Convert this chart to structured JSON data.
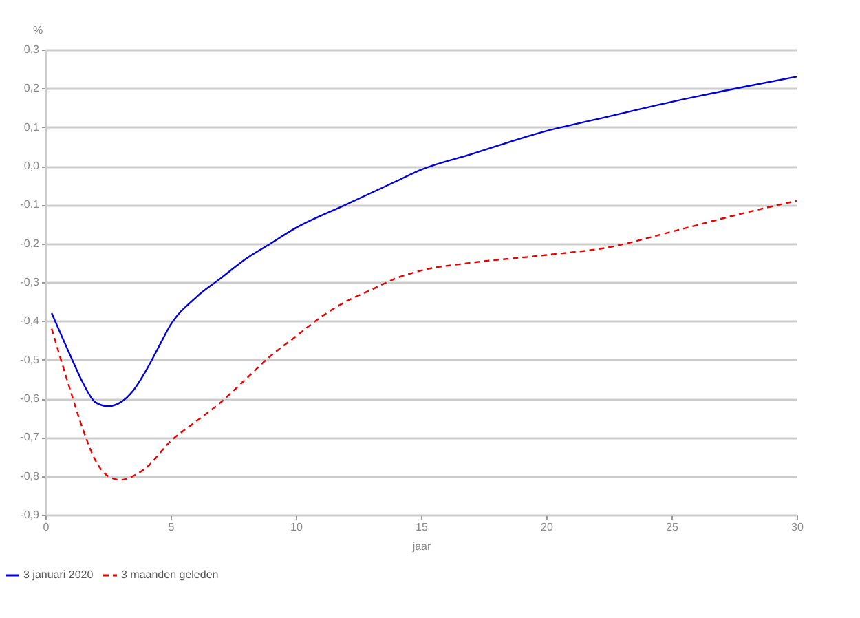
{
  "chart_data": {
    "type": "line",
    "xlabel": "jaar",
    "ylabel": "%",
    "xlim": [
      0,
      30
    ],
    "xticks": [
      0,
      5,
      10,
      15,
      20,
      25,
      30
    ],
    "ylim": [
      -0.9,
      0.3
    ],
    "yticks": [
      {
        "value": 0.3,
        "label": "0,3"
      },
      {
        "value": 0.2,
        "label": "0,2"
      },
      {
        "value": 0.1,
        "label": "0,1"
      },
      {
        "value": 0,
        "label": "0,0"
      },
      {
        "value": -0.1,
        "label": "-0,1"
      },
      {
        "value": -0.2,
        "label": "-0,2"
      },
      {
        "value": -0.3,
        "label": "-0,3"
      },
      {
        "value": -0.4,
        "label": "-0,4"
      },
      {
        "value": -0.5,
        "label": "-0,5"
      },
      {
        "value": -0.6,
        "label": "-0,6"
      },
      {
        "value": -0.7,
        "label": "-0,7"
      },
      {
        "value": -0.8,
        "label": "-0,8"
      },
      {
        "value": -0.9,
        "label": "-0,9"
      }
    ],
    "grid": "y",
    "legend": "bottom left",
    "series": [
      {
        "name": "3 januari 2020",
        "color": "#0000dd",
        "line_style": "solid",
        "x": [
          0.25,
          1,
          1.5,
          2,
          2.5,
          3,
          3.5,
          4,
          4.5,
          5,
          6,
          7,
          8,
          9,
          10,
          12,
          14,
          15,
          17,
          20,
          22,
          25,
          28,
          30
        ],
        "values": [
          -0.38,
          -0.49,
          -0.56,
          -0.61,
          -0.62,
          -0.61,
          -0.58,
          -0.53,
          -0.47,
          -0.41,
          -0.34,
          -0.29,
          -0.24,
          -0.2,
          -0.16,
          -0.1,
          -0.04,
          -0.01,
          0.03,
          0.09,
          0.12,
          0.165,
          0.205,
          0.23
        ]
      },
      {
        "name": "3 maanden geleden",
        "color": "#ee0000",
        "line_style": "dashed",
        "x": [
          0.25,
          1,
          1.5,
          2,
          2.5,
          3,
          3.5,
          4,
          5,
          6,
          7,
          8,
          9,
          10,
          11,
          12,
          13,
          14,
          15,
          17,
          20,
          22.5,
          25,
          28,
          30
        ],
        "values": [
          -0.42,
          -0.58,
          -0.68,
          -0.76,
          -0.8,
          -0.81,
          -0.8,
          -0.78,
          -0.71,
          -0.66,
          -0.61,
          -0.55,
          -0.49,
          -0.44,
          -0.39,
          -0.35,
          -0.32,
          -0.29,
          -0.27,
          -0.25,
          -0.23,
          -0.21,
          -0.17,
          -0.12,
          -0.09
        ]
      }
    ]
  }
}
